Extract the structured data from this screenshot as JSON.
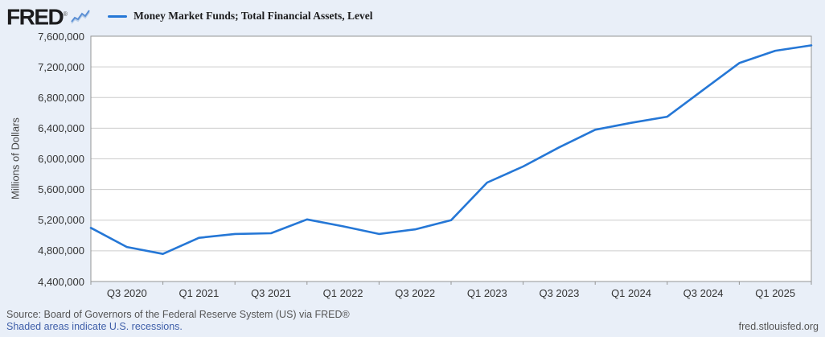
{
  "header": {
    "logo_text": "FRED",
    "registered_mark": "®",
    "legend": {
      "marker": "line-swatch",
      "label": "Money Market Funds; Total Financial Assets, Level"
    }
  },
  "chart_data": {
    "type": "line",
    "title": "Money Market Funds; Total Financial Assets, Level",
    "ylabel": "Millions of Dollars",
    "xlabel": "",
    "x": [
      "Q2 2020",
      "Q3 2020",
      "Q4 2020",
      "Q1 2021",
      "Q2 2021",
      "Q3 2021",
      "Q4 2021",
      "Q1 2022",
      "Q2 2022",
      "Q3 2022",
      "Q4 2022",
      "Q1 2023",
      "Q2 2023",
      "Q3 2023",
      "Q4 2023",
      "Q1 2024",
      "Q2 2024",
      "Q3 2024",
      "Q4 2024",
      "Q1 2025",
      "Q2 2025"
    ],
    "values": [
      5100000,
      4850000,
      4760000,
      4970000,
      5020000,
      5030000,
      5210000,
      5120000,
      5020000,
      5080000,
      5200000,
      5690000,
      5900000,
      6150000,
      6380000,
      6470000,
      6550000,
      6900000,
      7250000,
      7410000,
      7480000
    ],
    "ylim": [
      4400000,
      7600000
    ],
    "ytick_interval": 400000,
    "ytick_labels_top_to_bottom": [
      "7,600,000",
      "7,200,000",
      "6,800,000",
      "6,400,000",
      "6,000,000",
      "5,600,000",
      "5,200,000",
      "4,800,000",
      "4,400,000"
    ],
    "xtick_labels": [
      "Q3 2020",
      "Q1 2021",
      "Q3 2021",
      "Q1 2022",
      "Q3 2022",
      "Q1 2023",
      "Q3 2023",
      "Q1 2024",
      "Q3 2024",
      "Q1 2025"
    ],
    "grid": true,
    "legend_position": "top-left"
  },
  "footer": {
    "source_line": "Source: Board of Governors of the Federal Reserve System (US) via FRED®",
    "recession_note": "Shaded areas indicate U.S. recessions.",
    "site_url": "fred.stlouisfed.org"
  },
  "colors": {
    "page_bg": "#e9eff8",
    "plot_bg": "#ffffff",
    "plot_border": "#949494",
    "gridline": "#cccccc",
    "series_line": "#2577d6",
    "spark_icon_blue": "#5b8fd4",
    "spark_icon_light": "#b9cfe9",
    "tick_text": "#333333",
    "axis_label_text": "#444444",
    "footer_text": "#555555",
    "link_text": "#3f5fa9"
  }
}
